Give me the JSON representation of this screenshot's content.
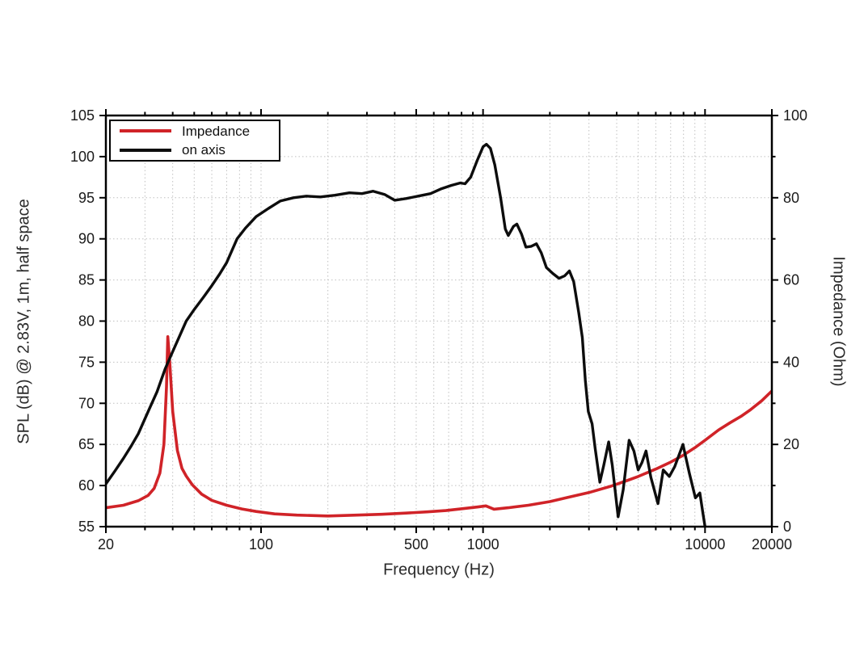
{
  "chart_data": {
    "type": "line",
    "title": "",
    "xlabel": "Frequency (Hz)",
    "ylabel_left": "SPL (dB) @ 2.83V, 1m, half space",
    "ylabel_right": "Impedance (Ohm)",
    "x_scale": "log",
    "xlim": [
      20,
      20000
    ],
    "ylim_left": [
      55,
      105
    ],
    "ylim_right": [
      0,
      100
    ],
    "grid": true,
    "x_major_ticks": [
      20,
      100,
      500,
      1000,
      10000,
      20000
    ],
    "x_major_tick_labels": [
      "20",
      "100",
      "500",
      "1000",
      "10000",
      "20000"
    ],
    "x_minor_ticks": [
      30,
      40,
      50,
      60,
      70,
      80,
      90,
      200,
      300,
      400,
      600,
      700,
      800,
      900,
      2000,
      3000,
      4000,
      5000,
      6000,
      7000,
      8000,
      9000
    ],
    "y_left_ticks": [
      55,
      60,
      65,
      70,
      75,
      80,
      85,
      90,
      95,
      100,
      105
    ],
    "y_right_major_ticks": [
      0,
      20,
      40,
      60,
      80,
      100
    ],
    "y_right_minor_ticks": [
      10,
      30,
      50,
      70,
      90
    ],
    "legend": {
      "position": "top-left",
      "entries": [
        {
          "label": "Impedance",
          "color": "#d02328"
        },
        {
          "label": "on axis",
          "color": "#0d0d0d"
        }
      ]
    },
    "series": [
      {
        "name": "Impedance",
        "axis": "right",
        "unit": "Ohm",
        "color": "#d02328",
        "width": 3.6,
        "points": [
          [
            20,
            4.6
          ],
          [
            24,
            5.2
          ],
          [
            28,
            6.3
          ],
          [
            31,
            7.6
          ],
          [
            33,
            9.3
          ],
          [
            35,
            13
          ],
          [
            36.5,
            20
          ],
          [
            37.5,
            34
          ],
          [
            38,
            46.2
          ],
          [
            38.8,
            40
          ],
          [
            40,
            28
          ],
          [
            42,
            18.5
          ],
          [
            44,
            14.2
          ],
          [
            46,
            12.3
          ],
          [
            49,
            10.2
          ],
          [
            54,
            7.9
          ],
          [
            60,
            6.4
          ],
          [
            70,
            5.2
          ],
          [
            82,
            4.3
          ],
          [
            95,
            3.7
          ],
          [
            115,
            3.1
          ],
          [
            145,
            2.8
          ],
          [
            200,
            2.6
          ],
          [
            270,
            2.8
          ],
          [
            350,
            3.0
          ],
          [
            450,
            3.3
          ],
          [
            560,
            3.6
          ],
          [
            680,
            3.9
          ],
          [
            820,
            4.4
          ],
          [
            950,
            4.8
          ],
          [
            1030,
            5.05
          ],
          [
            1120,
            4.25
          ],
          [
            1300,
            4.6
          ],
          [
            1600,
            5.2
          ],
          [
            2000,
            6.1
          ],
          [
            2400,
            7.1
          ],
          [
            3000,
            8.3
          ],
          [
            3800,
            9.9
          ],
          [
            4500,
            11.3
          ],
          [
            5000,
            12.2
          ],
          [
            6000,
            14.0
          ],
          [
            7000,
            15.7
          ],
          [
            8000,
            17.4
          ],
          [
            9000,
            19.2
          ],
          [
            10000,
            21.0
          ],
          [
            11500,
            23.5
          ],
          [
            13000,
            25.3
          ],
          [
            14500,
            26.8
          ],
          [
            16000,
            28.4
          ],
          [
            18000,
            30.6
          ],
          [
            20000,
            33.0
          ]
        ]
      },
      {
        "name": "on axis",
        "axis": "left",
        "unit": "dB",
        "color": "#0d0d0d",
        "width": 3.4,
        "points": [
          [
            20,
            60.2
          ],
          [
            22,
            61.8
          ],
          [
            24,
            63.3
          ],
          [
            26,
            64.8
          ],
          [
            28,
            66.3
          ],
          [
            31,
            69.0
          ],
          [
            34,
            71.4
          ],
          [
            37,
            74.2
          ],
          [
            40,
            76.3
          ],
          [
            43,
            78.2
          ],
          [
            46,
            80.0
          ],
          [
            50,
            81.4
          ],
          [
            55,
            82.9
          ],
          [
            60,
            84.3
          ],
          [
            65,
            85.7
          ],
          [
            70,
            87.1
          ],
          [
            78,
            90.0
          ],
          [
            85,
            91.3
          ],
          [
            95,
            92.7
          ],
          [
            108,
            93.7
          ],
          [
            122,
            94.6
          ],
          [
            140,
            95.0
          ],
          [
            160,
            95.2
          ],
          [
            185,
            95.1
          ],
          [
            215,
            95.3
          ],
          [
            250,
            95.6
          ],
          [
            285,
            95.5
          ],
          [
            320,
            95.8
          ],
          [
            360,
            95.4
          ],
          [
            400,
            94.7
          ],
          [
            450,
            94.9
          ],
          [
            510,
            95.2
          ],
          [
            580,
            95.5
          ],
          [
            650,
            96.1
          ],
          [
            720,
            96.5
          ],
          [
            790,
            96.8
          ],
          [
            830,
            96.7
          ],
          [
            880,
            97.5
          ],
          [
            940,
            99.5
          ],
          [
            1000,
            101.2
          ],
          [
            1035,
            101.5
          ],
          [
            1080,
            101.0
          ],
          [
            1130,
            99.0
          ],
          [
            1200,
            95.0
          ],
          [
            1260,
            91.2
          ],
          [
            1300,
            90.4
          ],
          [
            1370,
            91.5
          ],
          [
            1420,
            91.8
          ],
          [
            1490,
            90.6
          ],
          [
            1560,
            89.0
          ],
          [
            1650,
            89.1
          ],
          [
            1740,
            89.4
          ],
          [
            1830,
            88.3
          ],
          [
            1930,
            86.5
          ],
          [
            2060,
            85.8
          ],
          [
            2200,
            85.2
          ],
          [
            2330,
            85.5
          ],
          [
            2450,
            86.1
          ],
          [
            2560,
            84.8
          ],
          [
            2700,
            81.0
          ],
          [
            2800,
            78.0
          ],
          [
            2890,
            72.8
          ],
          [
            2980,
            69.0
          ],
          [
            3100,
            67.5
          ],
          [
            3200,
            64.5
          ],
          [
            3360,
            60.4
          ],
          [
            3500,
            62.5
          ],
          [
            3680,
            65.3
          ],
          [
            3820,
            62.5
          ],
          [
            4060,
            56.2
          ],
          [
            4280,
            59.5
          ],
          [
            4550,
            65.5
          ],
          [
            4780,
            64.2
          ],
          [
            5000,
            61.9
          ],
          [
            5200,
            62.8
          ],
          [
            5420,
            64.2
          ],
          [
            5700,
            61.0
          ],
          [
            6140,
            57.8
          ],
          [
            6480,
            61.9
          ],
          [
            6900,
            61.1
          ],
          [
            7300,
            62.3
          ],
          [
            7950,
            65.0
          ],
          [
            8500,
            61.5
          ],
          [
            9050,
            58.5
          ],
          [
            9480,
            59.1
          ],
          [
            9800,
            56.5
          ],
          [
            10000,
            55.0
          ],
          [
            10150,
            53.5
          ]
        ]
      }
    ]
  },
  "colors": {
    "background": "#ffffff",
    "frame": "#000000",
    "grid": "#c0c0c0",
    "tick_text": "#1a1a1a",
    "impedance_curve": "#d02328",
    "spl_curve": "#0d0d0d"
  }
}
